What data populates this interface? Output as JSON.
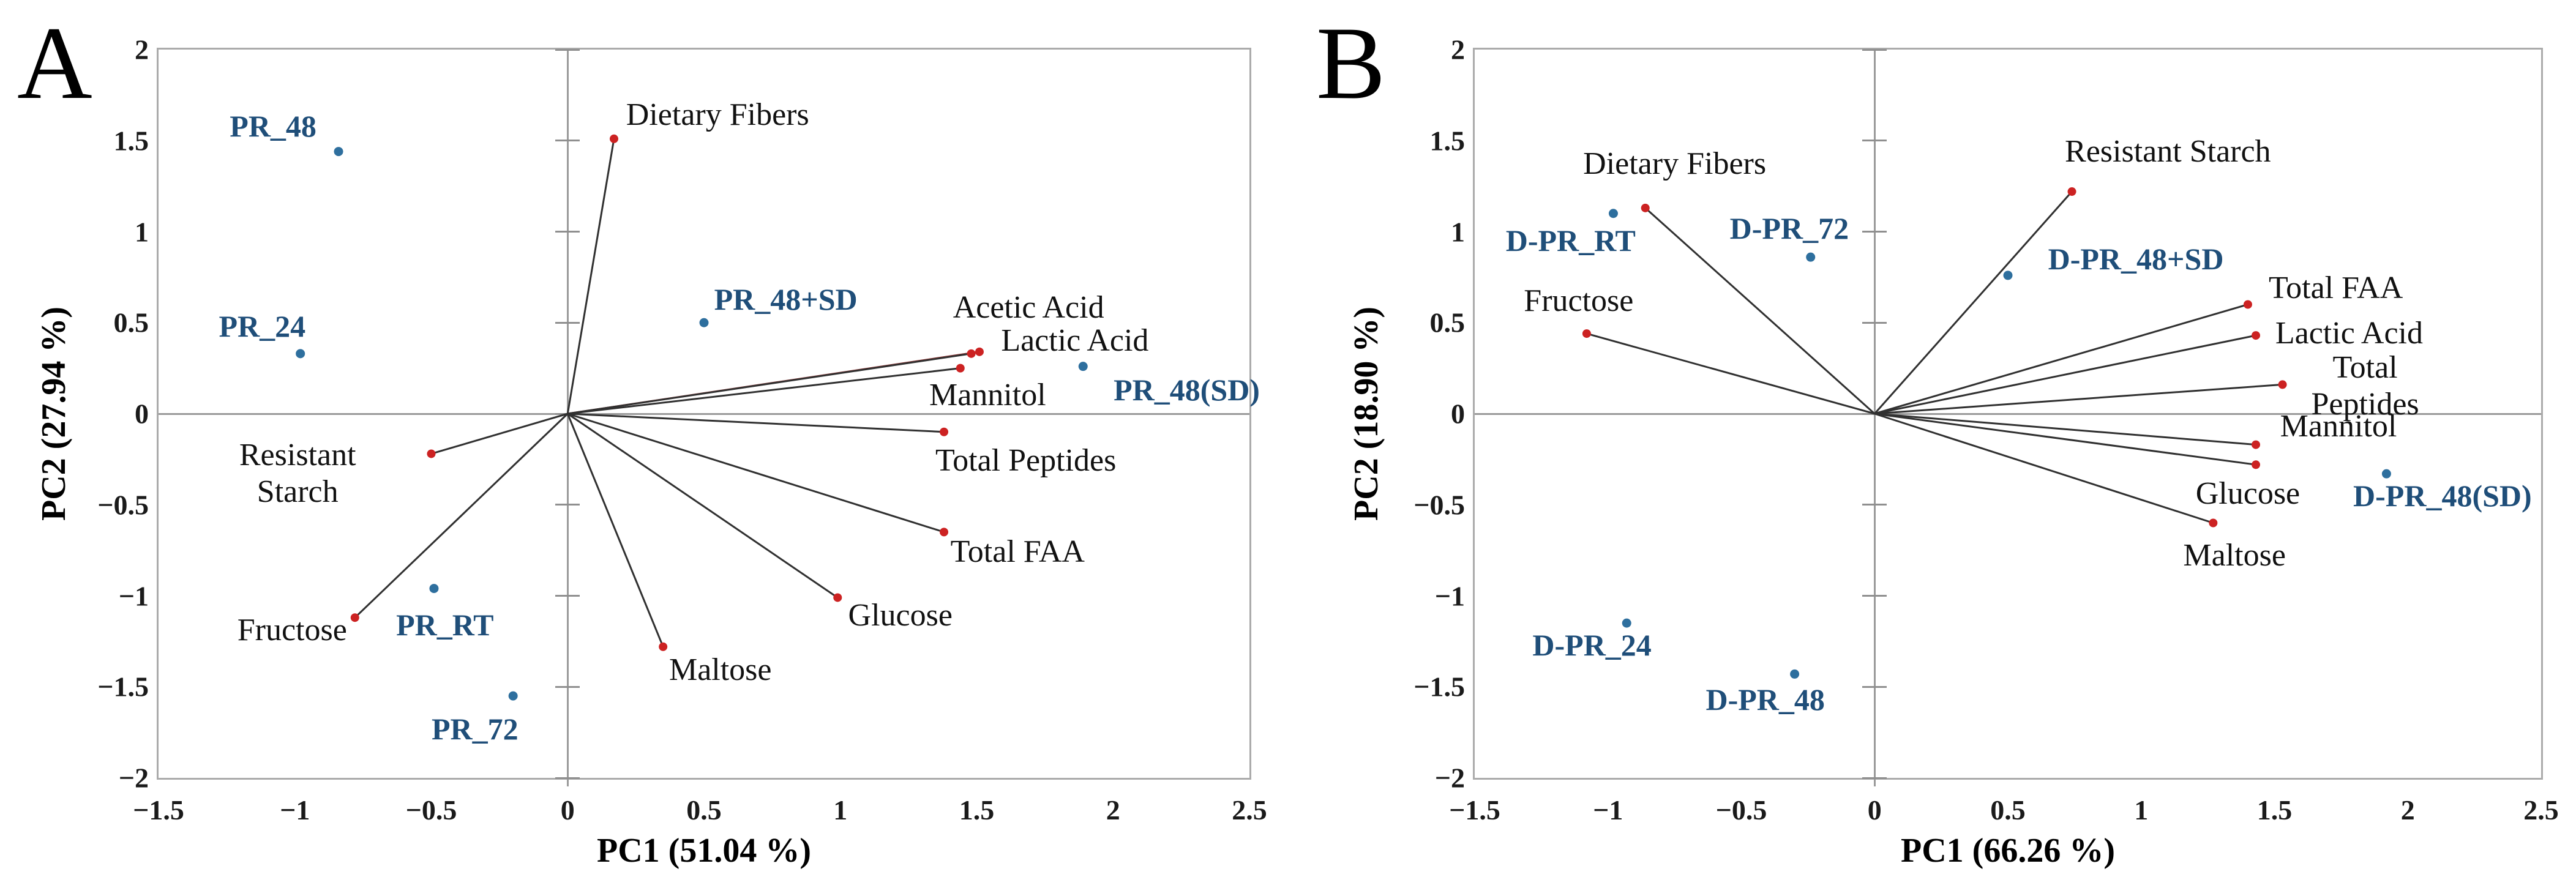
{
  "colors": {
    "sample_dot": "#2e6f9e",
    "sample_text": "#1f4e79",
    "loading_dot": "#cc2222",
    "vector": "#303030",
    "vector_accent": "#8c3130",
    "axis_gray": "#ababab",
    "tick_text": "#1a1a1a"
  },
  "chart_data": [
    {
      "type": "scatter",
      "panel": "A",
      "xlabel": "PC1 (51.04 %)",
      "ylabel": "PC2 (27.94 %)",
      "xlim": [
        -1.5,
        2.5
      ],
      "ylim": [
        -2,
        2
      ],
      "x_ticks": {
        "values": [
          -1.5,
          -1,
          -0.5,
          0,
          0.5,
          1,
          1.5,
          2,
          2.5
        ],
        "labels": [
          "−1.5",
          "−1",
          "−0.5",
          "0",
          "0.5",
          "1",
          "1.5",
          "2",
          "2.5"
        ]
      },
      "y_ticks": {
        "values": [
          -2,
          -1.5,
          -1,
          -0.5,
          0,
          0.5,
          1,
          1.5,
          2
        ],
        "labels": [
          "−2",
          "−1.5",
          "−1",
          "−0.5",
          "0",
          "0.5",
          "1",
          "1.5",
          "2"
        ]
      },
      "samples": [
        {
          "label": "PR_48",
          "x": -0.84,
          "y": 1.44,
          "label_x": -1.08,
          "label_y": 1.58
        },
        {
          "label": "PR_24",
          "x": -0.98,
          "y": 0.33,
          "label_x": -1.12,
          "label_y": 0.48
        },
        {
          "label": "PR_48+SD",
          "x": 0.5,
          "y": 0.5,
          "label_x": 0.8,
          "label_y": 0.63
        },
        {
          "label": "PR_48(SD)",
          "x": 1.89,
          "y": 0.26,
          "label_x": 2.27,
          "label_y": 0.13
        },
        {
          "label": "PR_RT",
          "x": -0.49,
          "y": -0.96,
          "label_x": -0.45,
          "label_y": -1.16
        },
        {
          "label": "PR_72",
          "x": -0.2,
          "y": -1.55,
          "label_x": -0.34,
          "label_y": -1.73
        }
      ],
      "loadings": [
        {
          "label": "Dietary Fibers",
          "x": 0.17,
          "y": 1.51,
          "label_x": 0.55,
          "label_y": 1.64,
          "accent": false
        },
        {
          "label": "Acetic Acid",
          "x": 1.51,
          "y": 0.34,
          "label_x": 1.69,
          "label_y": 0.58,
          "accent": true
        },
        {
          "label": "Lactic Acid",
          "x": 1.48,
          "y": 0.33,
          "label_x": 1.86,
          "label_y": 0.4,
          "accent": false
        },
        {
          "label": "Mannitol",
          "x": 1.44,
          "y": 0.25,
          "label_x": 1.54,
          "label_y": 0.1,
          "accent": false
        },
        {
          "label": "Total Peptides",
          "x": 1.38,
          "y": -0.1,
          "label_x": 1.68,
          "label_y": -0.26,
          "accent": false
        },
        {
          "label": "Total FAA",
          "x": 1.38,
          "y": -0.65,
          "label_x": 1.65,
          "label_y": -0.76,
          "accent": false
        },
        {
          "label": "Glucose",
          "x": 0.99,
          "y": -1.01,
          "label_x": 1.22,
          "label_y": -1.11,
          "accent": false
        },
        {
          "label": "Maltose",
          "x": 0.35,
          "y": -1.28,
          "label_x": 0.56,
          "label_y": -1.41,
          "accent": false
        },
        {
          "label": "Resistant\nStarch",
          "x": -0.5,
          "y": -0.22,
          "label_x": -0.99,
          "label_y": -0.33,
          "accent": false
        },
        {
          "label": "Fructose",
          "x": -0.78,
          "y": -1.12,
          "label_x": -1.01,
          "label_y": -1.19,
          "accent": false
        }
      ]
    },
    {
      "type": "scatter",
      "panel": "B",
      "xlabel": "PC1 (66.26 %)",
      "ylabel": "PC2 (18.90 %)",
      "xlim": [
        -1.5,
        2.5
      ],
      "ylim": [
        -2,
        2
      ],
      "x_ticks": {
        "values": [
          -1.5,
          -1,
          -0.5,
          0,
          0.5,
          1,
          1.5,
          2,
          2.5
        ],
        "labels": [
          "−1.5",
          "−1",
          "−0.5",
          "0",
          "0.5",
          "1",
          "1.5",
          "2",
          "2.5"
        ]
      },
      "y_ticks": {
        "values": [
          -2,
          -1.5,
          -1,
          -0.5,
          0,
          0.5,
          1,
          1.5,
          2
        ],
        "labels": [
          "−2",
          "−1.5",
          "−1",
          "−0.5",
          "0",
          "0.5",
          "1",
          "1.5",
          "2"
        ]
      },
      "samples": [
        {
          "label": "D-PR_RT",
          "x": -0.98,
          "y": 1.1,
          "label_x": -1.14,
          "label_y": 0.95
        },
        {
          "label": "D-PR_72",
          "x": -0.24,
          "y": 0.86,
          "label_x": -0.32,
          "label_y": 1.02
        },
        {
          "label": "D-PR_48+SD",
          "x": 0.5,
          "y": 0.76,
          "label_x": 0.98,
          "label_y": 0.85
        },
        {
          "label": "D-PR_48(SD)",
          "x": 1.92,
          "y": -0.33,
          "label_x": 2.13,
          "label_y": -0.45
        },
        {
          "label": "D-PR_24",
          "x": -0.93,
          "y": -1.15,
          "label_x": -1.06,
          "label_y": -1.27
        },
        {
          "label": "D-PR_48",
          "x": -0.3,
          "y": -1.43,
          "label_x": -0.41,
          "label_y": -1.57
        }
      ],
      "loadings": [
        {
          "label": "Dietary Fibers",
          "x": -0.86,
          "y": 1.13,
          "label_x": -0.75,
          "label_y": 1.37,
          "accent": false
        },
        {
          "label": "Resistant Starch",
          "x": 0.74,
          "y": 1.22,
          "label_x": 1.1,
          "label_y": 1.44,
          "accent": false
        },
        {
          "label": "Fructose",
          "x": -1.08,
          "y": 0.44,
          "label_x": -1.11,
          "label_y": 0.62,
          "accent": false
        },
        {
          "label": "Total FAA",
          "x": 1.4,
          "y": 0.6,
          "label_x": 1.73,
          "label_y": 0.69,
          "accent": false
        },
        {
          "label": "Lactic Acid",
          "x": 1.43,
          "y": 0.43,
          "label_x": 1.78,
          "label_y": 0.44,
          "accent": false
        },
        {
          "label": "Total Peptides",
          "x": 1.53,
          "y": 0.16,
          "label_x": 1.84,
          "label_y": 0.15,
          "accent": false
        },
        {
          "label": "Mannitol",
          "x": 1.43,
          "y": -0.17,
          "label_x": 1.74,
          "label_y": -0.07,
          "accent": false
        },
        {
          "label": "Glucose",
          "x": 1.43,
          "y": -0.28,
          "label_x": 1.4,
          "label_y": -0.44,
          "accent": false
        },
        {
          "label": "Maltose",
          "x": 1.27,
          "y": -0.6,
          "label_x": 1.35,
          "label_y": -0.78,
          "accent": false
        }
      ]
    }
  ]
}
